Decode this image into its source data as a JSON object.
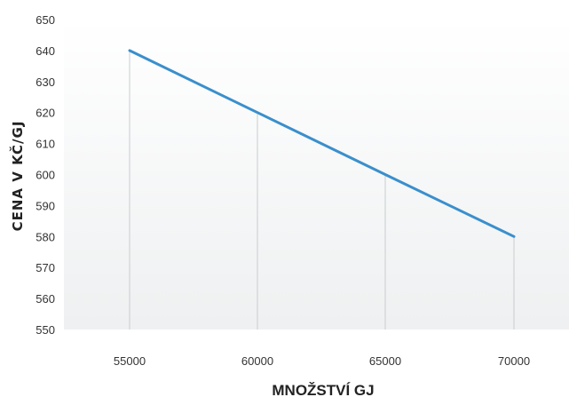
{
  "chart_data": {
    "type": "line",
    "title": "",
    "xlabel": "MNOŽSTVÍ GJ",
    "ylabel": "CENA V KČ/GJ",
    "x": [
      55000,
      60000,
      65000,
      70000
    ],
    "series": [
      {
        "values": [
          640,
          620,
          600,
          580
        ],
        "color": "#3a8fcc"
      }
    ],
    "xticks": [
      "55000",
      "60000",
      "65000",
      "70000"
    ],
    "yticks": [
      "550",
      "560",
      "570",
      "580",
      "590",
      "600",
      "610",
      "620",
      "630",
      "640",
      "650"
    ],
    "ylim": [
      550,
      650
    ],
    "grid": "vertical drop lines at data points",
    "legend": "none",
    "plot_background": "gradient light gray"
  }
}
